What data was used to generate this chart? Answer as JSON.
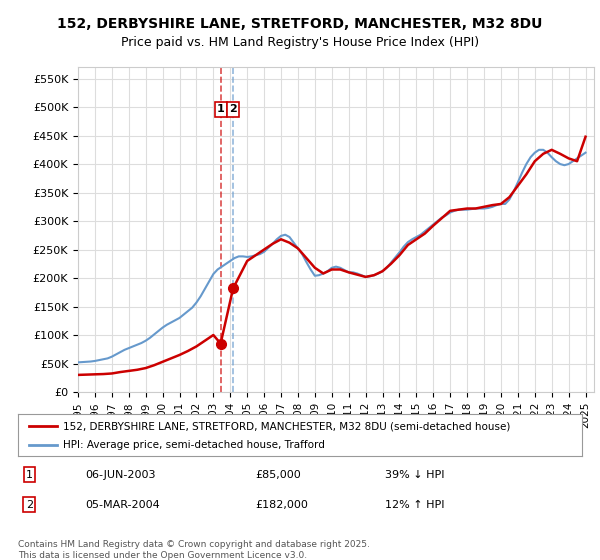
{
  "title": "152, DERBYSHIRE LANE, STRETFORD, MANCHESTER, M32 8DU",
  "subtitle": "Price paid vs. HM Land Registry's House Price Index (HPI)",
  "ylabel": "",
  "xlabel": "",
  "ylim": [
    0,
    570000
  ],
  "yticks": [
    0,
    50000,
    100000,
    150000,
    200000,
    250000,
    300000,
    350000,
    400000,
    450000,
    500000,
    550000
  ],
  "ytick_labels": [
    "£0",
    "£50K",
    "£100K",
    "£150K",
    "£200K",
    "£250K",
    "£300K",
    "£350K",
    "£400K",
    "£450K",
    "£500K",
    "£550K"
  ],
  "xlim_start": 1995.0,
  "xlim_end": 2025.5,
  "background_color": "#ffffff",
  "grid_color": "#dddddd",
  "red_color": "#cc0000",
  "blue_color": "#6699cc",
  "transaction1_date": "06-JUN-2003",
  "transaction1_price": 85000,
  "transaction1_hpi": "39% ↓ HPI",
  "transaction1_x": 2003.43,
  "transaction2_date": "05-MAR-2004",
  "transaction2_price": 182000,
  "transaction2_hpi": "12% ↑ HPI",
  "transaction2_x": 2004.17,
  "legend_label_red": "152, DERBYSHIRE LANE, STRETFORD, MANCHESTER, M32 8DU (semi-detached house)",
  "legend_label_blue": "HPI: Average price, semi-detached house, Trafford",
  "footer": "Contains HM Land Registry data © Crown copyright and database right 2025.\nThis data is licensed under the Open Government Licence v3.0.",
  "hpi_years": [
    1995.0,
    1995.25,
    1995.5,
    1995.75,
    1996.0,
    1996.25,
    1996.5,
    1996.75,
    1997.0,
    1997.25,
    1997.5,
    1997.75,
    1998.0,
    1998.25,
    1998.5,
    1998.75,
    1999.0,
    1999.25,
    1999.5,
    1999.75,
    2000.0,
    2000.25,
    2000.5,
    2000.75,
    2001.0,
    2001.25,
    2001.5,
    2001.75,
    2002.0,
    2002.25,
    2002.5,
    2002.75,
    2003.0,
    2003.25,
    2003.5,
    2003.75,
    2004.0,
    2004.25,
    2004.5,
    2004.75,
    2005.0,
    2005.25,
    2005.5,
    2005.75,
    2006.0,
    2006.25,
    2006.5,
    2006.75,
    2007.0,
    2007.25,
    2007.5,
    2007.75,
    2008.0,
    2008.25,
    2008.5,
    2008.75,
    2009.0,
    2009.25,
    2009.5,
    2009.75,
    2010.0,
    2010.25,
    2010.5,
    2010.75,
    2011.0,
    2011.25,
    2011.5,
    2011.75,
    2012.0,
    2012.25,
    2012.5,
    2012.75,
    2013.0,
    2013.25,
    2013.5,
    2013.75,
    2014.0,
    2014.25,
    2014.5,
    2014.75,
    2015.0,
    2015.25,
    2015.5,
    2015.75,
    2016.0,
    2016.25,
    2016.5,
    2016.75,
    2017.0,
    2017.25,
    2017.5,
    2017.75,
    2018.0,
    2018.25,
    2018.5,
    2018.75,
    2019.0,
    2019.25,
    2019.5,
    2019.75,
    2020.0,
    2020.25,
    2020.5,
    2020.75,
    2021.0,
    2021.25,
    2021.5,
    2021.75,
    2022.0,
    2022.25,
    2022.5,
    2022.75,
    2023.0,
    2023.25,
    2023.5,
    2023.75,
    2024.0,
    2024.25,
    2024.5,
    2024.75,
    2025.0
  ],
  "hpi_values": [
    52000,
    52500,
    53000,
    53500,
    54500,
    56000,
    57500,
    59000,
    62000,
    66000,
    70000,
    74000,
    77000,
    80000,
    83000,
    86000,
    90000,
    95000,
    101000,
    107000,
    113000,
    118000,
    122000,
    126000,
    130000,
    136000,
    142000,
    148000,
    157000,
    168000,
    181000,
    194000,
    207000,
    215000,
    220000,
    225000,
    230000,
    235000,
    238000,
    238000,
    237000,
    238000,
    240000,
    242000,
    246000,
    253000,
    260000,
    268000,
    274000,
    276000,
    272000,
    262000,
    252000,
    242000,
    228000,
    215000,
    204000,
    205000,
    208000,
    212000,
    218000,
    220000,
    218000,
    214000,
    210000,
    210000,
    208000,
    205000,
    202000,
    203000,
    205000,
    208000,
    212000,
    218000,
    227000,
    236000,
    245000,
    255000,
    263000,
    268000,
    272000,
    276000,
    282000,
    288000,
    294000,
    300000,
    306000,
    310000,
    315000,
    318000,
    320000,
    320000,
    320000,
    321000,
    322000,
    322000,
    322000,
    323000,
    325000,
    328000,
    330000,
    330000,
    338000,
    352000,
    368000,
    385000,
    400000,
    412000,
    420000,
    425000,
    425000,
    420000,
    412000,
    405000,
    400000,
    398000,
    400000,
    405000,
    410000,
    415000,
    420000
  ],
  "red_years": [
    1995.0,
    1995.5,
    1996.0,
    1996.5,
    1997.0,
    1997.5,
    1998.0,
    1998.5,
    1999.0,
    1999.5,
    2000.0,
    2000.5,
    2001.0,
    2001.5,
    2002.0,
    2002.5,
    2003.0,
    2003.43,
    2004.17,
    2005.0,
    2005.5,
    2006.0,
    2006.5,
    2007.0,
    2007.5,
    2008.0,
    2008.5,
    2009.0,
    2009.5,
    2010.0,
    2010.5,
    2011.0,
    2011.5,
    2012.0,
    2012.5,
    2013.0,
    2013.5,
    2014.0,
    2014.5,
    2015.0,
    2015.5,
    2016.0,
    2016.5,
    2017.0,
    2017.5,
    2018.0,
    2018.5,
    2019.0,
    2019.5,
    2020.0,
    2020.5,
    2021.0,
    2021.5,
    2022.0,
    2022.5,
    2023.0,
    2023.5,
    2024.0,
    2024.5,
    2025.0
  ],
  "red_values": [
    30000,
    30500,
    31000,
    31500,
    32500,
    35000,
    37000,
    39000,
    42000,
    47000,
    53000,
    59000,
    65000,
    72000,
    80000,
    90000,
    100000,
    85000,
    182000,
    230000,
    240000,
    250000,
    260000,
    268000,
    262000,
    252000,
    235000,
    218000,
    208000,
    215000,
    215000,
    210000,
    206000,
    202000,
    205000,
    212000,
    225000,
    240000,
    258000,
    268000,
    278000,
    292000,
    305000,
    318000,
    320000,
    322000,
    322000,
    325000,
    328000,
    330000,
    342000,
    362000,
    382000,
    405000,
    418000,
    425000,
    418000,
    410000,
    405000,
    448000
  ]
}
